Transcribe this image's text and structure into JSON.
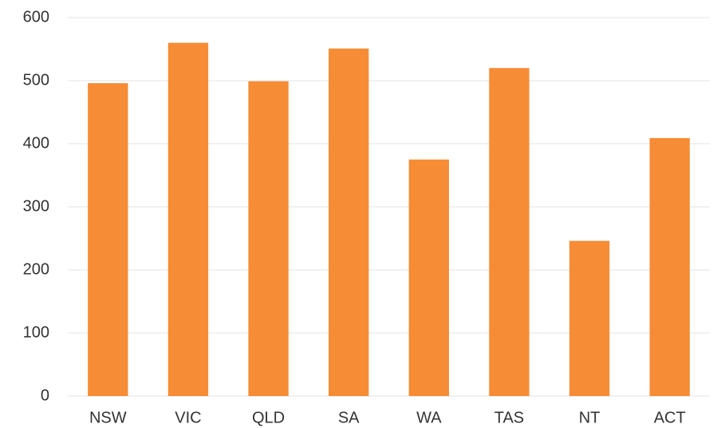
{
  "chart_data": {
    "type": "bar",
    "categories": [
      "NSW",
      "VIC",
      "QLD",
      "SA",
      "WA",
      "TAS",
      "NT",
      "ACT"
    ],
    "values": [
      496,
      560,
      499,
      551,
      375,
      520,
      246,
      409
    ],
    "color": "#f68c35",
    "ylim": [
      0,
      600
    ],
    "yticks": [
      0,
      100,
      200,
      300,
      400,
      500,
      600
    ],
    "grid": true
  }
}
